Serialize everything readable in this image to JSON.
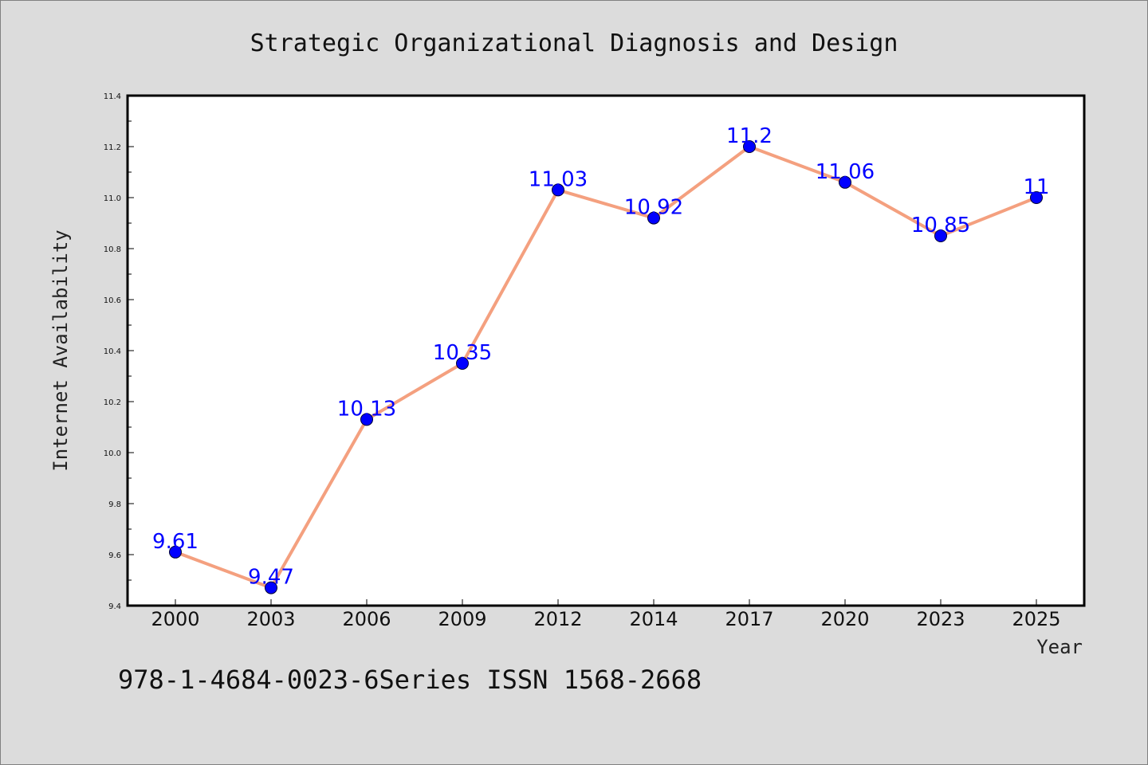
{
  "footer": "978-1-4684-0023-6Series ISSN 1568-2668",
  "chart_data": {
    "type": "line",
    "title": "Strategic Organizational Diagnosis and Design",
    "xlabel": "Year",
    "ylabel": "Internet Availability",
    "categories": [
      "2000",
      "2003",
      "2006",
      "2009",
      "2012",
      "2014",
      "2017",
      "2020",
      "2023",
      "2025"
    ],
    "values": [
      9.61,
      9.47,
      10.13,
      10.35,
      11.03,
      10.92,
      11.2,
      11.06,
      10.85,
      11
    ],
    "data_labels": [
      "9.61",
      "9.47",
      "10.13",
      "10.35",
      "11.03",
      "10.92",
      "11.2",
      "11.06",
      "10.85",
      "11"
    ],
    "ylim": [
      9.4,
      11.4
    ],
    "yticks": [
      "9.4",
      "9.6",
      "9.8",
      "10.0",
      "10.2",
      "10.4",
      "10.6",
      "10.8",
      "11.0",
      "11.2",
      "11.4"
    ],
    "grid": false,
    "line_color": "#f4a07f",
    "marker_color": "#0000ff",
    "label_color": "#0000ff",
    "plot_background": "#ffffff",
    "page_background": "#dcdcdc"
  }
}
